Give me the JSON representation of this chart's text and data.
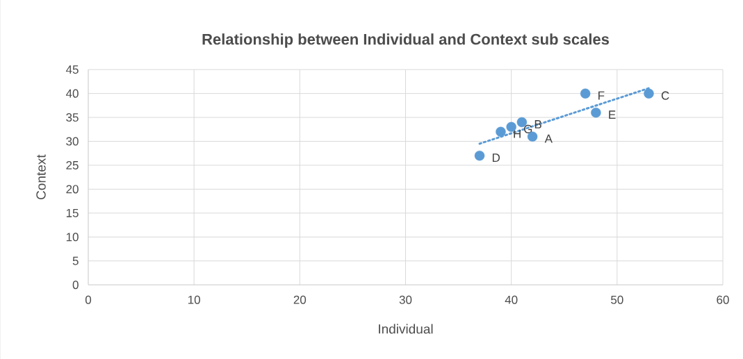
{
  "chart_data": {
    "type": "scatter",
    "title": "Relationship between Individual and Context sub scales",
    "xlabel": "Individual",
    "ylabel": "Context",
    "series": [
      {
        "color": "#5b9bd5",
        "x": [
          42,
          41,
          53,
          37,
          48,
          47,
          40,
          39
        ],
        "values": [
          31,
          34,
          40,
          27,
          36,
          40,
          33,
          32
        ],
        "marker": "circle"
      },
      {
        "type": "line",
        "color": "#5b9bd5",
        "x": [
          37,
          53
        ],
        "values": [
          29.5,
          41.1
        ],
        "line_style": "dotted",
        "marker": "none"
      }
    ],
    "annotations": [
      {
        "text": "A",
        "x": 42,
        "y": 31
      },
      {
        "text": "B",
        "x": 41,
        "y": 34
      },
      {
        "text": "C",
        "x": 53,
        "y": 40
      },
      {
        "text": "D",
        "x": 37,
        "y": 27
      },
      {
        "text": "E",
        "x": 48,
        "y": 36
      },
      {
        "text": "F",
        "x": 47,
        "y": 40
      },
      {
        "text": "G",
        "x": 40,
        "y": 33
      },
      {
        "text": "H",
        "x": 39,
        "y": 32
      }
    ],
    "xlim": [
      0,
      60
    ],
    "ylim": [
      0,
      45
    ],
    "xticks": [
      0,
      10,
      20,
      30,
      40,
      50,
      60
    ],
    "yticks": [
      0,
      5,
      10,
      15,
      20,
      25,
      30,
      35,
      40,
      45
    ],
    "grid": true
  }
}
